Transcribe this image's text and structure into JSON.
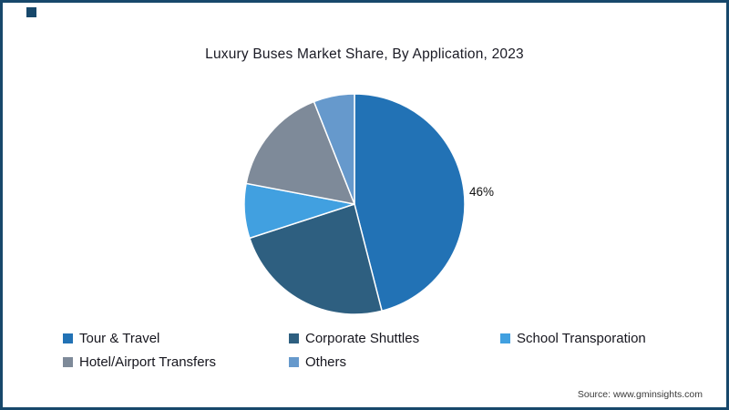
{
  "frame": {
    "border_color": "#17486b",
    "corner_mark_color": "#17486b"
  },
  "title": "Luxury Buses Market Share, By Application, 2023",
  "source": "Source: www.gminsights.com",
  "chart_data": {
    "type": "pie",
    "title": "Luxury Buses Market Share, By Application, 2023",
    "labels": [
      "Tour & Travel",
      "Corporate Shuttles",
      "School Transporation",
      "Hotel/Airport Transfers",
      "Others"
    ],
    "values": [
      46,
      24,
      8,
      16,
      6
    ],
    "colors": [
      "#2272b5",
      "#2e5f80",
      "#41a0e0",
      "#7e8a99",
      "#6699cc"
    ],
    "start_angle_deg": -90,
    "direction": "clockwise",
    "legend_position": "bottom",
    "data_label": {
      "slice": "Tour & Travel",
      "text": "46%"
    }
  }
}
